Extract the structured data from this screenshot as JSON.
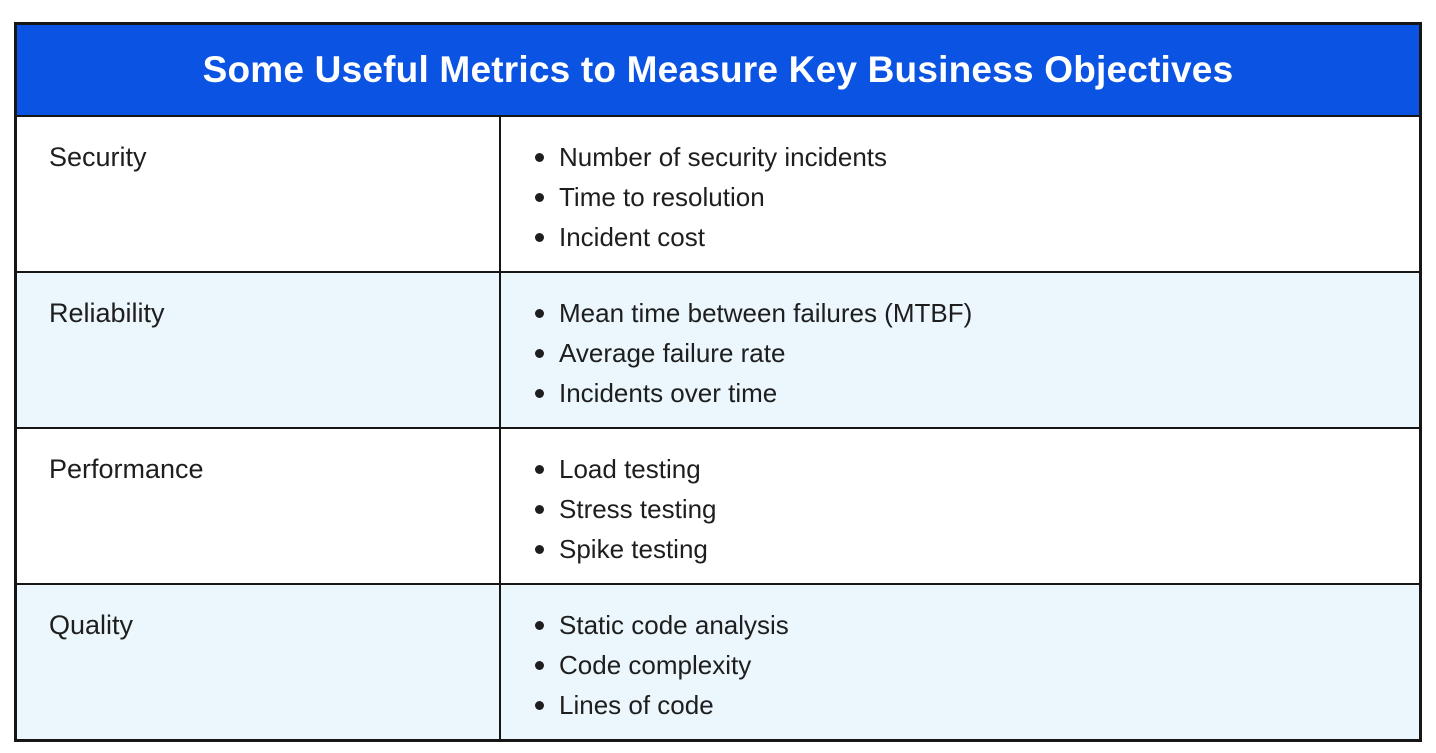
{
  "title": "Some Useful Metrics to Measure Key Business Objectives",
  "colors": {
    "header_bg": "#0B53E2",
    "row_alt_bg": "#EBF7FD",
    "border": "#161616",
    "text": "#1E1E1E",
    "title_color": "#FFFFFF"
  },
  "columns": [
    "objective",
    "metrics"
  ],
  "rows": [
    {
      "objective": "Security",
      "metrics": [
        "Number of security incidents",
        "Time to resolution",
        "Incident cost"
      ]
    },
    {
      "objective": "Reliability",
      "metrics": [
        "Mean time between failures (MTBF)",
        "Average failure rate",
        "Incidents over time"
      ]
    },
    {
      "objective": "Performance",
      "metrics": [
        "Load testing",
        "Stress testing",
        "Spike testing"
      ]
    },
    {
      "objective": "Quality",
      "metrics": [
        "Static code analysis",
        "Code complexity",
        "Lines of code"
      ]
    }
  ]
}
